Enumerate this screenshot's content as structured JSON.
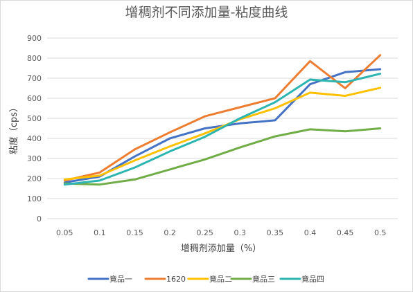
{
  "chart_data": {
    "type": "line",
    "title": "增稠剂不同添加量-粘度曲线",
    "xlabel": "增稠剂添加量（%）",
    "ylabel": "粘度（cps）",
    "categories": [
      "0.05",
      "0.1",
      "0.15",
      "0.2",
      "0.25",
      "0.3",
      "0.35",
      "0.4",
      "0.45",
      "0.5"
    ],
    "ylim": [
      0,
      900
    ],
    "yticks": [
      "0",
      "100",
      "200",
      "300",
      "400",
      "500",
      "600",
      "700",
      "800",
      "900"
    ],
    "grid": "horizontal",
    "legend_position": "bottom",
    "series": [
      {
        "name": "竟品一",
        "color": "#4472c4",
        "values": [
          180,
          210,
          310,
          400,
          450,
          475,
          490,
          670,
          730,
          745
        ]
      },
      {
        "name": "1620",
        "color": "#ed7d31",
        "values": [
          190,
          230,
          345,
          430,
          510,
          555,
          600,
          785,
          650,
          815
        ]
      },
      {
        "name": "竟品二",
        "color": "#ffc000",
        "values": [
          195,
          215,
          290,
          360,
          425,
          495,
          550,
          628,
          612,
          652
        ]
      },
      {
        "name": "竟品三",
        "color": "#70ad47",
        "values": [
          175,
          170,
          195,
          245,
          295,
          355,
          410,
          445,
          435,
          450
        ]
      },
      {
        "name": "竟品四",
        "color": "#2cb5b0",
        "values": [
          170,
          190,
          255,
          335,
          408,
          500,
          580,
          693,
          680,
          722
        ]
      }
    ]
  }
}
